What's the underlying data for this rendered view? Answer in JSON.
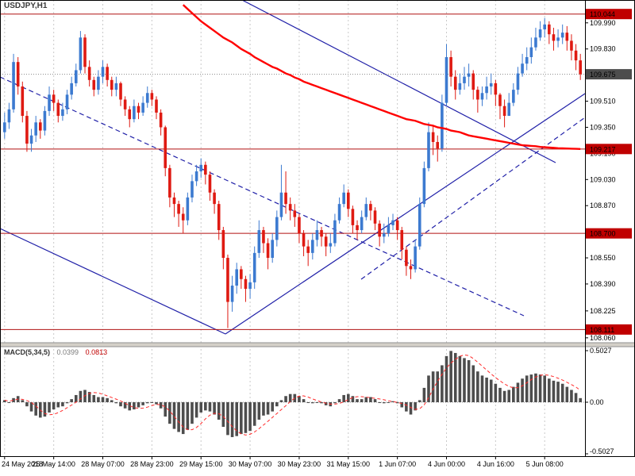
{
  "window": {
    "symbol_label": "USDJPY,H1"
  },
  "colors": {
    "background": "#ffffff",
    "bull": "#3c7ad0",
    "bear": "#df1a12",
    "ma_line": "#ff0000",
    "level_line": "#b01212",
    "level_badge": "#c00000",
    "current_badge": "#4d4d4d",
    "trendline": "#2020a8",
    "grid": "#c9c9c9",
    "macd_bar": "#4d4d4d",
    "macd_signal": "#ff2a2a",
    "separator": "#d4d0c8",
    "axis_text": "#000000"
  },
  "price_axis": {
    "tick_labels": [
      "109.990",
      "109.830",
      "109.510",
      "109.350",
      "109.190",
      "109.030",
      "108.870",
      "108.550",
      "108.390",
      "108.225",
      "108.060"
    ],
    "level_badges": [
      "110.044",
      "109.217",
      "108.700",
      "108.111"
    ],
    "current_price_label": "109.675"
  },
  "time_axis": {
    "labels": [
      "24 May 2018",
      "25 May 14:00",
      "28 May 07:00",
      "28 May 23:00",
      "29 May 15:00",
      "30 May 07:00",
      "30 May 23:00",
      "31 May 15:00",
      "1 Jun 07:00",
      "4 Jun 00:00",
      "4 Jun 16:00",
      "5 Jun 08:00"
    ],
    "anchor_indices": [
      0,
      11,
      22,
      33,
      44,
      55,
      66,
      77,
      88,
      99,
      110,
      121
    ]
  },
  "macd": {
    "name": "MACD(5,34,5)",
    "value_main": "0.0399",
    "value_signal": "0.0813",
    "axis_labels": [
      "0.5027",
      "0.00",
      "-0.5027"
    ]
  },
  "chart_data": [
    {
      "type": "candlestick",
      "symbol": "USDJPY",
      "timeframe": "H1",
      "y_range": [
        108.03,
        110.13
      ],
      "first_open": 109.32,
      "closes": [
        109.38,
        109.46,
        109.75,
        109.6,
        109.42,
        109.25,
        109.3,
        109.38,
        109.33,
        109.45,
        109.55,
        109.5,
        109.42,
        109.46,
        109.55,
        109.62,
        109.7,
        109.9,
        109.72,
        109.64,
        109.58,
        109.66,
        109.72,
        109.64,
        109.58,
        109.62,
        109.52,
        109.46,
        109.4,
        109.48,
        109.44,
        109.5,
        109.56,
        109.52,
        109.44,
        109.35,
        109.1,
        108.92,
        108.88,
        108.82,
        108.78,
        108.92,
        109.02,
        109.08,
        109.12,
        109.06,
        108.95,
        108.88,
        108.72,
        108.55,
        108.28,
        108.38,
        108.48,
        108.42,
        108.36,
        108.4,
        108.58,
        108.72,
        108.64,
        108.55,
        108.66,
        108.8,
        108.95,
        108.88,
        108.84,
        108.8,
        108.7,
        108.62,
        108.58,
        108.66,
        108.72,
        108.68,
        108.62,
        108.64,
        108.78,
        108.88,
        108.95,
        108.85,
        108.75,
        108.72,
        108.8,
        108.88,
        108.84,
        108.76,
        108.68,
        108.7,
        108.75,
        108.78,
        108.72,
        108.6,
        108.5,
        108.48,
        108.62,
        108.88,
        109.1,
        109.32,
        109.26,
        109.22,
        109.5,
        109.78,
        109.66,
        109.58,
        109.62,
        109.66,
        109.68,
        109.58,
        109.52,
        109.56,
        109.6,
        109.62,
        109.55,
        109.48,
        109.42,
        109.5,
        109.58,
        109.68,
        109.74,
        109.78,
        109.84,
        109.9,
        109.95,
        109.98,
        109.92,
        109.88,
        109.9,
        109.93,
        109.88,
        109.82,
        109.76,
        109.675
      ],
      "highs": [
        109.44,
        109.5,
        109.8,
        109.78,
        109.63,
        109.45,
        109.34,
        109.42,
        109.4,
        109.48,
        109.6,
        109.58,
        109.52,
        109.5,
        109.58,
        109.66,
        109.74,
        109.94,
        109.92,
        109.76,
        109.66,
        109.7,
        109.76,
        109.74,
        109.66,
        109.66,
        109.63,
        109.54,
        109.48,
        109.52,
        109.5,
        109.54,
        109.6,
        109.58,
        109.54,
        109.46,
        109.36,
        109.12,
        108.95,
        108.9,
        108.86,
        108.95,
        109.06,
        109.12,
        109.16,
        109.14,
        109.08,
        108.97,
        108.9,
        108.74,
        108.57,
        108.44,
        108.52,
        108.5,
        108.44,
        108.45,
        108.62,
        108.78,
        108.74,
        108.67,
        108.7,
        108.84,
        109.12,
        109.08,
        108.92,
        108.88,
        108.82,
        108.72,
        108.66,
        108.7,
        108.78,
        108.74,
        108.7,
        108.7,
        108.82,
        108.92,
        109.0,
        108.97,
        108.87,
        108.78,
        108.84,
        108.92,
        108.9,
        108.86,
        108.78,
        108.76,
        108.8,
        108.82,
        108.8,
        108.74,
        108.62,
        108.54,
        108.66,
        108.92,
        109.14,
        109.38,
        109.36,
        109.3,
        109.55,
        109.86,
        109.82,
        109.7,
        109.68,
        109.72,
        109.74,
        109.7,
        109.6,
        109.6,
        109.66,
        109.68,
        109.64,
        109.56,
        109.52,
        109.56,
        109.62,
        109.72,
        109.8,
        109.84,
        109.9,
        109.96,
        110.0,
        110.02,
        110.0,
        109.96,
        109.95,
        109.98,
        109.97,
        109.92,
        109.86,
        109.8
      ],
      "lows": [
        109.28,
        109.34,
        109.44,
        109.55,
        109.38,
        109.2,
        109.2,
        109.26,
        109.28,
        109.3,
        109.42,
        109.45,
        109.38,
        109.39,
        109.43,
        109.52,
        109.6,
        109.68,
        109.68,
        109.6,
        109.54,
        109.55,
        109.62,
        109.6,
        109.54,
        109.54,
        109.48,
        109.42,
        109.35,
        109.38,
        109.4,
        109.42,
        109.47,
        109.48,
        109.4,
        109.3,
        109.05,
        108.86,
        108.8,
        108.74,
        108.7,
        108.75,
        108.89,
        108.99,
        109.04,
        109.0,
        108.9,
        108.82,
        108.66,
        108.48,
        108.12,
        108.22,
        108.33,
        108.36,
        108.28,
        108.3,
        108.36,
        108.55,
        108.58,
        108.48,
        108.52,
        108.62,
        108.78,
        108.82,
        108.78,
        108.74,
        108.64,
        108.56,
        108.5,
        108.54,
        108.62,
        108.62,
        108.56,
        108.58,
        108.62,
        108.76,
        108.86,
        108.8,
        108.7,
        108.66,
        108.7,
        108.78,
        108.78,
        108.72,
        108.62,
        108.64,
        108.68,
        108.72,
        108.66,
        108.54,
        108.44,
        108.42,
        108.46,
        108.6,
        108.86,
        109.08,
        109.18,
        109.14,
        109.2,
        109.48,
        109.6,
        109.52,
        109.55,
        109.58,
        109.6,
        109.52,
        109.44,
        109.48,
        109.52,
        109.55,
        109.48,
        109.4,
        109.35,
        109.42,
        109.48,
        109.55,
        109.66,
        109.7,
        109.74,
        109.82,
        109.88,
        109.9,
        109.86,
        109.82,
        109.84,
        109.86,
        109.82,
        109.76,
        109.7,
        109.64
      ],
      "red_ma": {
        "start_index": 40,
        "values": [
          110.1,
          110.075,
          110.05,
          110.025,
          110.0,
          109.98,
          109.96,
          109.94,
          109.92,
          109.9,
          109.885,
          109.87,
          109.85,
          109.83,
          109.815,
          109.8,
          109.78,
          109.765,
          109.75,
          109.735,
          109.72,
          109.71,
          109.695,
          109.68,
          109.67,
          109.655,
          109.645,
          109.63,
          109.62,
          109.61,
          109.6,
          109.59,
          109.58,
          109.57,
          109.56,
          109.55,
          109.54,
          109.53,
          109.52,
          109.51,
          109.5,
          109.49,
          109.48,
          109.47,
          109.46,
          109.45,
          109.44,
          109.43,
          109.42,
          109.41,
          109.4,
          109.395,
          109.39,
          109.38,
          109.37,
          109.365,
          109.36,
          109.35,
          109.345,
          109.34,
          109.33,
          109.325,
          109.32,
          109.31,
          109.3,
          109.295,
          109.29,
          109.285,
          109.28,
          109.275,
          109.27,
          109.265,
          109.26,
          109.255,
          109.25,
          109.245,
          109.24,
          109.238,
          109.236,
          109.234,
          109.23,
          109.228,
          109.226,
          109.224,
          109.222,
          109.221,
          109.22,
          109.219,
          109.218,
          109.217
        ]
      },
      "horizontal_levels": [
        110.044,
        109.217,
        108.7,
        108.111
      ],
      "current_price": 109.675,
      "trendlines": [
        {
          "style": "solid",
          "from": [
            305,
            0
          ],
          "to": [
            700,
            205
          ]
        },
        {
          "style": "solid",
          "from": [
            0,
            288
          ],
          "to": [
            284,
            421
          ]
        },
        {
          "style": "solid",
          "from": [
            284,
            421
          ],
          "to": [
            737,
            118
          ]
        },
        {
          "style": "dashed",
          "from": [
            0,
            97
          ],
          "to": [
            660,
            398
          ]
        },
        {
          "style": "dashed",
          "from": [
            455,
            352
          ],
          "to": [
            737,
            148
          ]
        }
      ]
    },
    {
      "type": "bar",
      "title": "MACD(5,34,5)",
      "y_range": [
        -0.5027,
        0.5027
      ],
      "signal_smoothing": 5,
      "last_main": 0.0399,
      "last_signal": 0.0813,
      "values": [
        0.02,
        0.0,
        0.04,
        0.06,
        0.02,
        -0.04,
        -0.09,
        -0.13,
        -0.15,
        -0.14,
        -0.1,
        -0.07,
        -0.05,
        -0.04,
        -0.01,
        0.03,
        0.07,
        0.11,
        0.12,
        0.1,
        0.07,
        0.05,
        0.05,
        0.04,
        0.02,
        -0.01,
        -0.04,
        -0.06,
        -0.08,
        -0.07,
        -0.05,
        -0.03,
        -0.01,
        0.0,
        -0.02,
        -0.06,
        -0.14,
        -0.21,
        -0.26,
        -0.29,
        -0.31,
        -0.27,
        -0.21,
        -0.15,
        -0.1,
        -0.08,
        -0.09,
        -0.12,
        -0.17,
        -0.24,
        -0.32,
        -0.34,
        -0.33,
        -0.31,
        -0.3,
        -0.28,
        -0.23,
        -0.17,
        -0.13,
        -0.12,
        -0.09,
        -0.04,
        0.02,
        0.06,
        0.08,
        0.08,
        0.06,
        0.03,
        0.0,
        -0.01,
        0.0,
        -0.01,
        -0.03,
        -0.04,
        -0.01,
        0.03,
        0.07,
        0.08,
        0.06,
        0.03,
        0.03,
        0.05,
        0.05,
        0.03,
        0.0,
        -0.01,
        0.0,
        0.01,
        -0.01,
        -0.05,
        -0.09,
        -0.12,
        -0.08,
        0.02,
        0.14,
        0.26,
        0.3,
        0.3,
        0.36,
        0.45,
        0.5,
        0.48,
        0.45,
        0.43,
        0.41,
        0.36,
        0.3,
        0.26,
        0.24,
        0.22,
        0.18,
        0.14,
        0.11,
        0.12,
        0.15,
        0.19,
        0.23,
        0.26,
        0.27,
        0.28,
        0.27,
        0.26,
        0.23,
        0.21,
        0.2,
        0.18,
        0.15,
        0.12,
        0.09,
        0.04
      ]
    }
  ]
}
